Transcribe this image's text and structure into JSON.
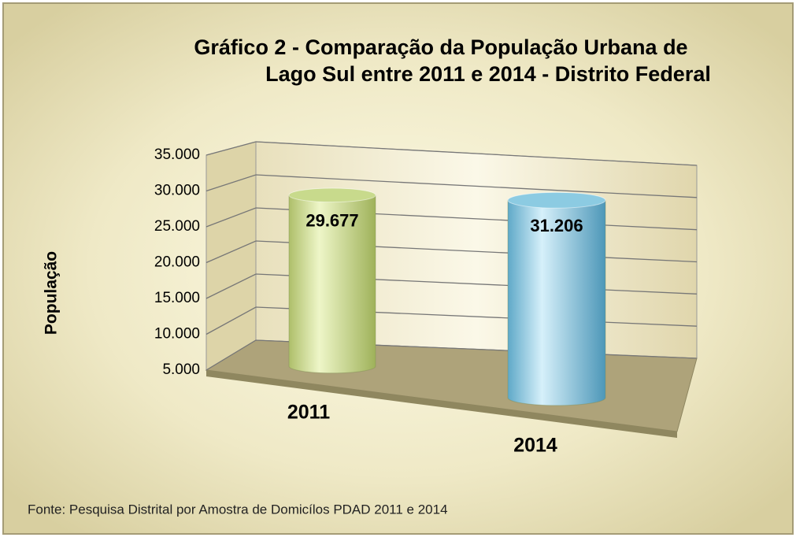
{
  "chart_data": {
    "type": "bar3d",
    "title": [
      "Gráfico 2 - Comparação da População  Urbana de",
      "Lago Sul entre  2011 e  2014 - Distrito Federal"
    ],
    "y_label": "População",
    "categories": [
      "2011",
      "2014"
    ],
    "series": [
      {
        "name": "População",
        "colors": [
          "#c8da8c",
          "#8ccbe2"
        ],
        "values": [
          29677,
          31206
        ],
        "value_labels": [
          "29.677",
          "31.206"
        ]
      }
    ],
    "ylim": [
      5000,
      35000
    ],
    "yticks": [
      {
        "value": 5000,
        "label": "5.000"
      },
      {
        "value": 10000,
        "label": "10.000"
      },
      {
        "value": 15000,
        "label": "15.000"
      },
      {
        "value": 20000,
        "label": "20.000"
      },
      {
        "value": 25000,
        "label": "25.000"
      },
      {
        "value": 30000,
        "label": "30.000"
      },
      {
        "value": 35000,
        "label": "35.000"
      }
    ],
    "grid": true,
    "source": "Fonte: Pesquisa Distrital por Amostra de Domicílos PDAD 2011 e 2014"
  }
}
